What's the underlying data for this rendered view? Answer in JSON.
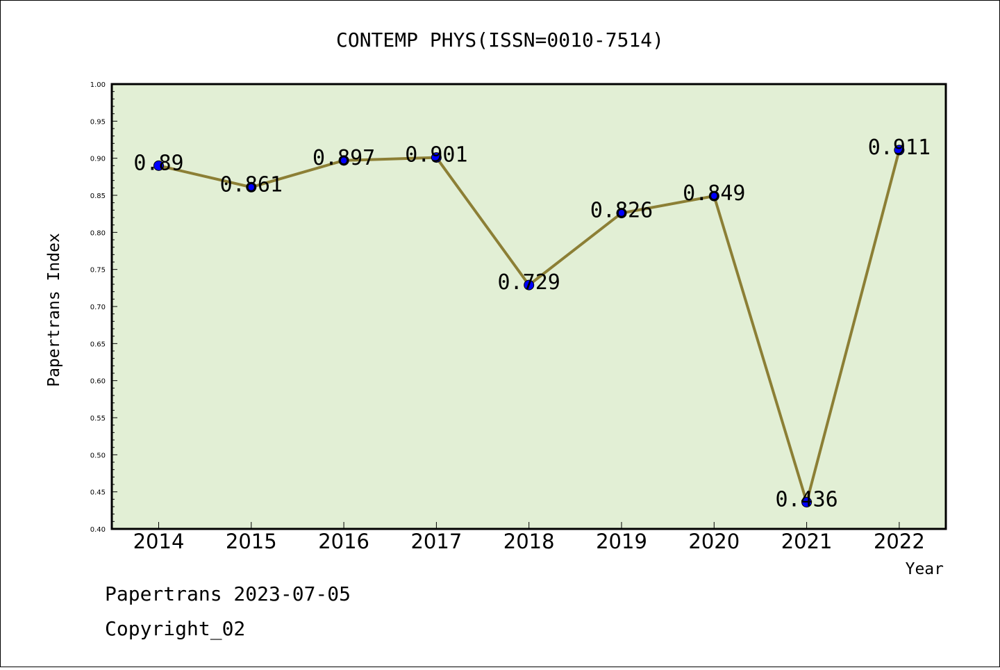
{
  "chart_data": {
    "type": "line",
    "title": "CONTEMP PHYS(ISSN=0010-7514)",
    "xlabel": "Year",
    "ylabel": "Papertrans Index",
    "categories": [
      "2014",
      "2015",
      "2016",
      "2017",
      "2018",
      "2019",
      "2020",
      "2021",
      "2022"
    ],
    "series": [
      {
        "values": [
          0.89,
          0.861,
          0.897,
          0.901,
          0.729,
          0.826,
          0.849,
          0.436,
          0.911
        ],
        "labels": [
          "0.89",
          "0.861",
          "0.897",
          "0.901",
          "0.729",
          "0.826",
          "0.849",
          "0.436",
          "0.911"
        ],
        "line_color": "#8c7f35",
        "marker_color": "#0000ff"
      }
    ],
    "ylim": [
      0.4,
      1.0
    ],
    "yticks": [
      "0.40",
      "0.45",
      "0.50",
      "0.55",
      "0.60",
      "0.65",
      "0.70",
      "0.75",
      "0.80",
      "0.85",
      "0.90",
      "0.95",
      "1.00"
    ],
    "plot_background": "#e2efd5",
    "grid": false,
    "legend": "none"
  },
  "footer": {
    "line1": "Papertrans 2023-07-05",
    "line2": "Copyright_02"
  }
}
